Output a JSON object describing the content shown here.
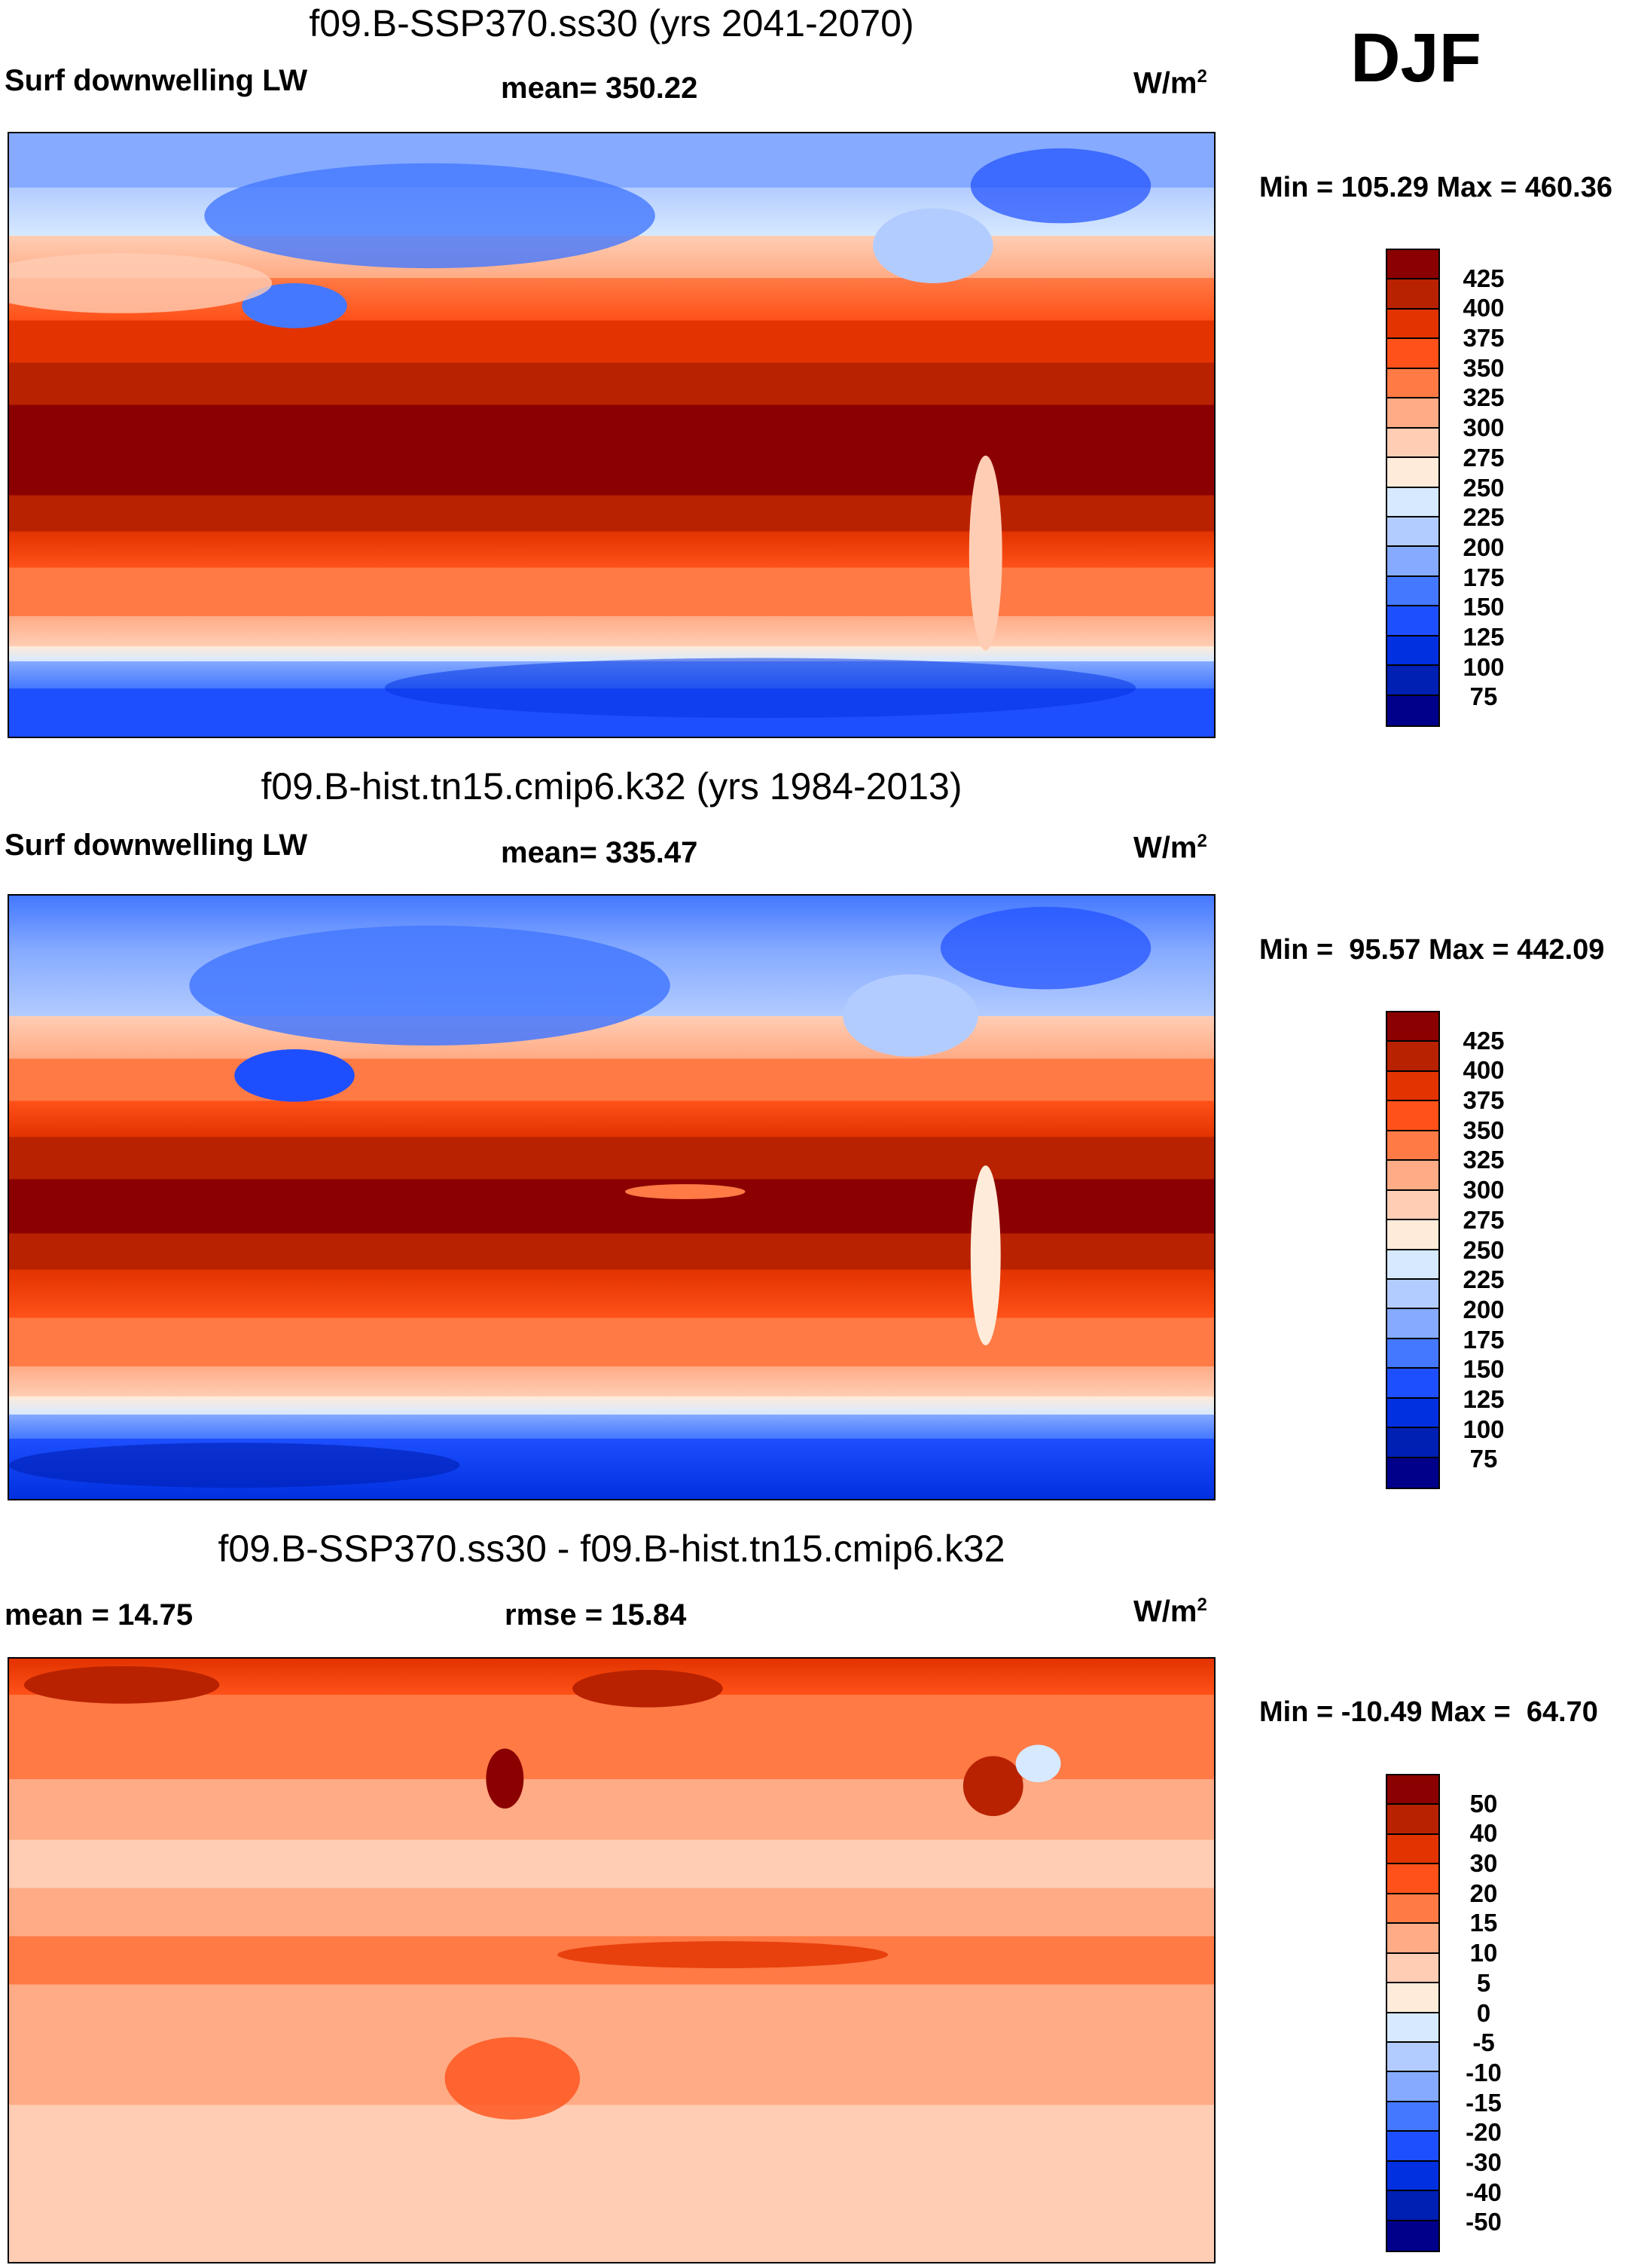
{
  "season": "DJF",
  "chart_data": [
    {
      "type": "heatmap",
      "title": "f09.B-SSP370.ss30 (yrs 2041-2070)",
      "left_label": "Surf downwelling LW",
      "center_label": "mean= 350.22",
      "units": "W/m",
      "units_sup": "2",
      "minmax": "Min = 105.29 Max = 460.36",
      "min": 105.29,
      "max": 460.36,
      "mean": 350.22,
      "colorbar_levels": [
        "425",
        "400",
        "375",
        "350",
        "325",
        "300",
        "275",
        "250",
        "225",
        "200",
        "175",
        "150",
        "125",
        "100",
        "75"
      ]
    },
    {
      "type": "heatmap",
      "title": "f09.B-hist.tn15.cmip6.k32 (yrs 1984-2013)",
      "left_label": "Surf downwelling LW",
      "center_label": "mean= 335.47",
      "units": "W/m",
      "units_sup": "2",
      "minmax": "Min =  95.57 Max = 442.09",
      "min": 95.57,
      "max": 442.09,
      "mean": 335.47,
      "colorbar_levels": [
        "425",
        "400",
        "375",
        "350",
        "325",
        "300",
        "275",
        "250",
        "225",
        "200",
        "175",
        "150",
        "125",
        "100",
        "75"
      ]
    },
    {
      "type": "heatmap",
      "title": "f09.B-SSP370.ss30 - f09.B-hist.tn15.cmip6.k32",
      "left_label": "mean =  14.75",
      "center_label": "rmse =  15.84",
      "units": "W/m",
      "units_sup": "2",
      "minmax": "Min = -10.49 Max =  64.70",
      "min": -10.49,
      "max": 64.7,
      "mean": 14.75,
      "rmse": 15.84,
      "colorbar_levels": [
        "50",
        "40",
        "30",
        "20",
        "15",
        "10",
        "5",
        "0",
        "-5",
        "-10",
        "-15",
        "-20",
        "-30",
        "-40",
        "-50"
      ]
    }
  ],
  "colormap": [
    "#8b0000",
    "#b82200",
    "#e23300",
    "#ff5119",
    "#ff7a45",
    "#ffab85",
    "#ffcdb4",
    "#ffebd9",
    "#d6e9ff",
    "#b3ccff",
    "#85aaff",
    "#4478ff",
    "#1e4fff",
    "#0030e0",
    "#001fb3",
    "#00008b"
  ]
}
